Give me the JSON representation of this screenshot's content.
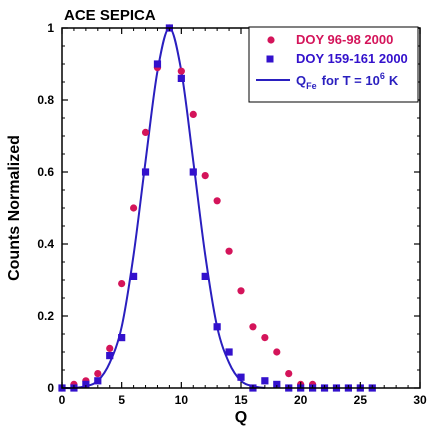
{
  "chart_data": {
    "type": "scatter",
    "title": "ACE SEPICA",
    "xlabel": "Q",
    "ylabel": "Counts Normalized",
    "xlim": [
      0,
      30
    ],
    "ylim": [
      0,
      1
    ],
    "x_ticks": [
      "0",
      "5",
      "10",
      "15",
      "20",
      "25",
      "30"
    ],
    "y_ticks": [
      "0",
      "0.2",
      "0.4",
      "0.6",
      "0.8",
      "1"
    ],
    "grid": false,
    "legend_position": "top-right",
    "series": [
      {
        "name": "DOY 96-98 2000",
        "marker": "circle",
        "color": "#d4145a",
        "x": [
          0,
          1,
          2,
          3,
          4,
          5,
          6,
          7,
          8,
          9,
          10,
          11,
          12,
          13,
          14,
          15,
          16,
          17,
          18,
          19,
          20,
          21
        ],
        "y": [
          0.0,
          0.01,
          0.02,
          0.04,
          0.11,
          0.29,
          0.5,
          0.71,
          0.89,
          1.0,
          0.88,
          0.76,
          0.59,
          0.52,
          0.38,
          0.27,
          0.17,
          0.14,
          0.1,
          0.04,
          0.01,
          0.01
        ]
      },
      {
        "name": "DOY 159-161 2000",
        "marker": "square",
        "color": "#3311cc",
        "x": [
          0,
          1,
          2,
          3,
          4,
          5,
          6,
          7,
          8,
          9,
          10,
          11,
          12,
          13,
          14,
          15,
          16,
          17,
          18,
          19,
          20,
          21,
          22,
          23,
          24,
          25,
          26
        ],
        "y": [
          0.0,
          0.0,
          0.01,
          0.02,
          0.09,
          0.14,
          0.31,
          0.6,
          0.9,
          1.0,
          0.86,
          0.6,
          0.31,
          0.17,
          0.1,
          0.03,
          0.0,
          0.02,
          0.01,
          0.0,
          0.0,
          0.0,
          0.0,
          0.0,
          0.0,
          0.0,
          0.0
        ]
      },
      {
        "name_parts": {
          "q": "Q",
          "sub": "Fe",
          "mid": "for T = 10",
          "sup": "6",
          "end": "K"
        },
        "marker": "line",
        "color": "#2a1fbf",
        "x": [
          0,
          1,
          2,
          3,
          4,
          5,
          6,
          7,
          8,
          9,
          10,
          11,
          12,
          13,
          14,
          15,
          16,
          17
        ],
        "y": [
          0.0,
          0.0,
          0.005,
          0.02,
          0.07,
          0.17,
          0.37,
          0.63,
          0.88,
          1.0,
          0.88,
          0.63,
          0.37,
          0.17,
          0.07,
          0.02,
          0.005,
          0.0
        ]
      }
    ]
  }
}
